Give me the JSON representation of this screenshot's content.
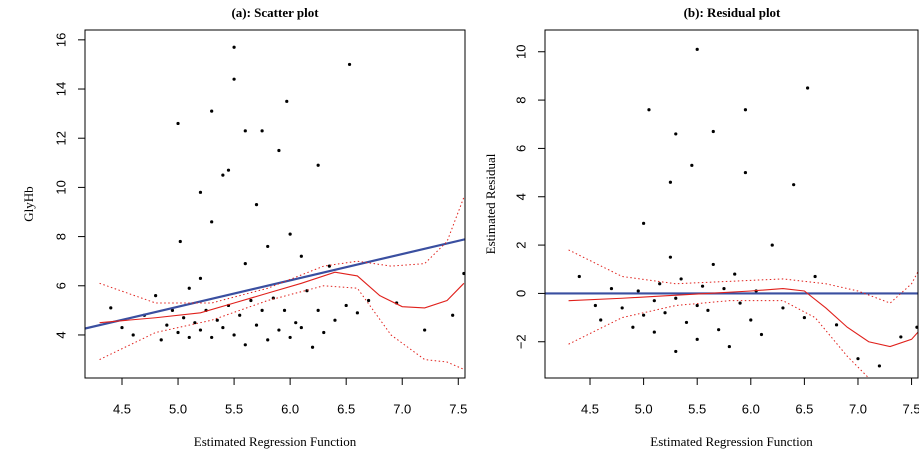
{
  "chart_data": [
    {
      "type": "scatter",
      "title": "(a): Scatter plot",
      "x_label": "Estimated Regression Function",
      "y_label": "GlyHb",
      "xlim": [
        4.17,
        7.56
      ],
      "ylim": [
        2.25,
        16.4
      ],
      "xticks": [
        4.5,
        {
          "value": 5,
          "label": "5.0"
        },
        5.5,
        {
          "value": 6,
          "label": "6.0"
        },
        6.5,
        {
          "value": 7,
          "label": "7.0"
        },
        7.5
      ],
      "yticks": [
        4,
        6,
        8,
        10,
        12,
        14,
        16
      ],
      "series": [
        {
          "mode": "points",
          "color": "#000000",
          "x": [
            4.4,
            4.5,
            4.6,
            4.7,
            4.8,
            4.85,
            4.9,
            4.95,
            5.0,
            5.0,
            5.05,
            5.1,
            5.1,
            5.15,
            5.2,
            5.2,
            5.25,
            5.3,
            5.3,
            5.35,
            5.4,
            5.4,
            5.45,
            5.5,
            5.5,
            5.55,
            5.6,
            5.6,
            5.65,
            5.7,
            5.7,
            5.75,
            5.8,
            5.8,
            5.85,
            5.9,
            5.9,
            5.95,
            6.0,
            6.0,
            6.05,
            6.1,
            6.1,
            6.15,
            6.2,
            6.25,
            6.3,
            6.35,
            6.4,
            6.5,
            6.6,
            6.7,
            6.95,
            7.2,
            7.45,
            7.55,
            5.02,
            5.3,
            5.5,
            5.6,
            5.75,
            5.97,
            6.53,
            5.2,
            5.45,
            6.25
          ],
          "values": [
            5.1,
            4.3,
            4.0,
            4.8,
            5.6,
            3.8,
            4.4,
            5.0,
            4.1,
            12.6,
            4.7,
            3.9,
            5.9,
            4.5,
            4.2,
            6.3,
            5.0,
            3.9,
            8.6,
            4.6,
            4.3,
            10.5,
            5.2,
            4.0,
            14.4,
            4.8,
            3.6,
            6.9,
            5.4,
            4.4,
            9.3,
            5.0,
            3.8,
            7.6,
            5.5,
            4.2,
            11.5,
            5.0,
            3.9,
            8.1,
            4.5,
            4.3,
            7.2,
            5.8,
            3.5,
            5.0,
            4.1,
            6.8,
            4.6,
            5.2,
            4.9,
            5.4,
            5.3,
            4.2,
            4.8,
            6.5,
            7.8,
            13.1,
            15.7,
            12.3,
            12.3,
            13.5,
            15.0,
            9.8,
            10.7,
            10.9
          ]
        },
        {
          "mode": "line",
          "color": "#3a4fa0",
          "width": 2.2,
          "x": [
            4.17,
            7.56
          ],
          "values": [
            4.26,
            7.89
          ]
        },
        {
          "mode": "line",
          "color": "#e0201b",
          "width": 1.1,
          "x": [
            4.3,
            4.8,
            5.2,
            5.5,
            5.8,
            6.1,
            6.4,
            6.6,
            6.8,
            7.0,
            7.2,
            7.4,
            7.55
          ],
          "values": [
            4.5,
            4.7,
            4.9,
            5.3,
            5.7,
            6.1,
            6.55,
            6.4,
            5.6,
            5.15,
            5.1,
            5.4,
            6.1
          ]
        },
        {
          "mode": "line",
          "dash": true,
          "color": "#e0201b",
          "width": 1,
          "x": [
            4.3,
            4.8,
            5.3,
            5.8,
            6.3,
            6.6,
            6.9,
            7.2,
            7.4,
            7.55
          ],
          "values": [
            6.1,
            5.3,
            5.3,
            5.9,
            6.8,
            7.0,
            6.8,
            6.9,
            7.8,
            9.6
          ]
        },
        {
          "mode": "line",
          "dash": true,
          "color": "#e0201b",
          "width": 1,
          "x": [
            4.3,
            4.8,
            5.3,
            5.8,
            6.3,
            6.6,
            6.9,
            7.2,
            7.4,
            7.55
          ],
          "values": [
            3.0,
            4.1,
            4.6,
            5.4,
            6.0,
            5.9,
            4.0,
            3.0,
            2.9,
            2.6
          ]
        }
      ]
    },
    {
      "type": "scatter",
      "title": "(b): Residual plot",
      "x_label": "Estimated Regression Function",
      "y_label": "Estimated Residual",
      "xlim": [
        4.08,
        7.56
      ],
      "ylim": [
        -3.5,
        10.9
      ],
      "xticks": [
        4.5,
        {
          "value": 5,
          "label": "5.0"
        },
        5.5,
        {
          "value": 6,
          "label": "6.0"
        },
        6.5,
        {
          "value": 7,
          "label": "7.0"
        },
        7.5
      ],
      "yticks": [
        {
          "value": -2,
          "label": "−2"
        },
        0,
        2,
        4,
        6,
        8,
        10
      ],
      "series": [
        {
          "mode": "points",
          "color": "#000000",
          "x": [
            4.4,
            4.55,
            4.6,
            4.7,
            4.8,
            4.9,
            4.95,
            5.0,
            5.05,
            5.1,
            5.1,
            5.15,
            5.2,
            5.25,
            5.3,
            5.3,
            5.35,
            5.4,
            5.45,
            5.5,
            5.5,
            5.55,
            5.6,
            5.65,
            5.7,
            5.75,
            5.8,
            5.85,
            5.9,
            5.95,
            6.0,
            6.05,
            6.1,
            6.2,
            6.3,
            6.4,
            6.5,
            6.6,
            6.8,
            7.0,
            7.2,
            7.4,
            7.55,
            5.0,
            5.3,
            5.5,
            5.65,
            5.95,
            6.53,
            5.25
          ],
          "values": [
            0.7,
            -0.5,
            -1.1,
            0.2,
            -0.6,
            -1.4,
            0.1,
            -0.9,
            7.6,
            -0.3,
            -1.6,
            0.4,
            -0.8,
            1.5,
            -0.2,
            -2.4,
            0.6,
            -1.2,
            5.3,
            -0.5,
            -1.9,
            0.3,
            -0.7,
            1.2,
            -1.5,
            0.2,
            -2.2,
            0.8,
            -0.4,
            5.0,
            -1.1,
            0.1,
            -1.7,
            2.0,
            -0.6,
            4.5,
            -1.0,
            0.7,
            -1.3,
            -2.7,
            -3.0,
            -1.8,
            -1.4,
            2.9,
            6.6,
            10.1,
            6.7,
            7.6,
            8.5,
            4.6
          ]
        },
        {
          "mode": "line",
          "color": "#3a4fa0",
          "width": 2.2,
          "x": [
            4.08,
            7.56
          ],
          "values": [
            0,
            0
          ]
        },
        {
          "mode": "line",
          "color": "#e0201b",
          "width": 1.1,
          "x": [
            4.3,
            4.8,
            5.2,
            5.6,
            6.0,
            6.3,
            6.5,
            6.7,
            6.9,
            7.1,
            7.3,
            7.5,
            7.56
          ],
          "values": [
            -0.3,
            -0.2,
            -0.1,
            0.0,
            0.1,
            0.2,
            0.1,
            -0.6,
            -1.4,
            -2.0,
            -2.2,
            -1.9,
            -1.6
          ]
        },
        {
          "mode": "line",
          "dash": true,
          "color": "#e0201b",
          "width": 1,
          "x": [
            4.3,
            4.8,
            5.3,
            5.8,
            6.3,
            6.7,
            7.0,
            7.3,
            7.5,
            7.56
          ],
          "values": [
            1.8,
            0.7,
            0.4,
            0.5,
            0.6,
            0.4,
            0.1,
            -0.4,
            0.4,
            0.9
          ]
        },
        {
          "mode": "line",
          "dash": true,
          "color": "#e0201b",
          "width": 1,
          "x": [
            4.3,
            4.8,
            5.3,
            5.8,
            6.3,
            6.6,
            6.9,
            7.1
          ],
          "values": [
            -2.1,
            -1.0,
            -0.5,
            -0.3,
            -0.3,
            -1.0,
            -2.6,
            -3.5
          ]
        }
      ]
    }
  ]
}
